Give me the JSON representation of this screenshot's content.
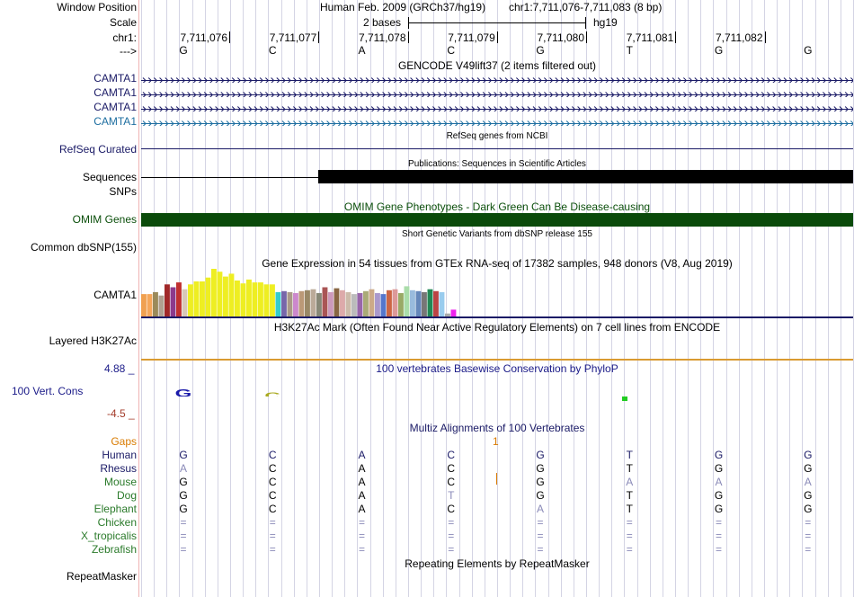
{
  "colors": {
    "navy": "#1a1a66",
    "teal": "#1d6ea0",
    "green_dark": "#0b4f0b",
    "omim_green": "#0a4a0a",
    "orange": "#d97b00",
    "red_label": "#a33b2a",
    "mammal_green": "#2a7a2a",
    "faint_base": "#8a8ab8"
  },
  "ruler": {
    "window_position_label": "Window Position",
    "scale_label": "Scale",
    "chr_label": "chr1:",
    "arrow_label": "--->",
    "assembly_text": "Human Feb. 2009 (GRCh37/hg19)",
    "position_text": "chr1:7,711,076-7,711,083 (8 bp)",
    "scale_text": "2 bases",
    "scale_db": "hg19",
    "coordinates": [
      "7,711,076",
      "7,711,077",
      "7,711,078",
      "7,711,079",
      "7,711,080",
      "7,711,081",
      "7,711,082"
    ],
    "bases": [
      "G",
      "C",
      "A",
      "C",
      "G",
      "T",
      "G",
      "G"
    ]
  },
  "gencode": {
    "title": "GENCODE V49lift37 (2 items filtered out)",
    "items": [
      "CAMTA1",
      "CAMTA1",
      "CAMTA1",
      "CAMTA1"
    ]
  },
  "refseq": {
    "label": "RefSeq Curated",
    "title": "RefSeq genes from NCBI"
  },
  "publications": {
    "label": "Sequences",
    "title": "Publications: Sequences in Scientific Articles"
  },
  "snps": {
    "label": "SNPs"
  },
  "omim": {
    "label": "OMIM Genes",
    "title": "OMIM Gene Phenotypes - Dark Green Can Be Disease-causing"
  },
  "dbsnp": {
    "label": "Common dbSNP(155)",
    "title": "Short Genetic Variants from dbSNP release 155"
  },
  "gtex": {
    "label": "CAMTA1",
    "title": "Gene Expression in 54 tissues from GTEx RNA-seq of 17382 samples, 948 donors (V8, Aug 2019)",
    "bars": [
      {
        "v": 0.48,
        "c": "#f0a050"
      },
      {
        "v": 0.48,
        "c": "#f5a65a"
      },
      {
        "v": 0.52,
        "c": "#9b8a5a"
      },
      {
        "v": 0.45,
        "c": "#b0a090"
      },
      {
        "v": 0.68,
        "c": "#a02828"
      },
      {
        "v": 0.62,
        "c": "#8c3a8c"
      },
      {
        "v": 0.72,
        "c": "#c03030"
      },
      {
        "v": 0.58,
        "c": "#d8c8b8"
      },
      {
        "v": 0.68,
        "c": "#eeee22"
      },
      {
        "v": 0.74,
        "c": "#eeee22"
      },
      {
        "v": 0.74,
        "c": "#eeee22"
      },
      {
        "v": 0.82,
        "c": "#eeee22"
      },
      {
        "v": 1.0,
        "c": "#eeee22"
      },
      {
        "v": 0.94,
        "c": "#eeee22"
      },
      {
        "v": 0.84,
        "c": "#eeee22"
      },
      {
        "v": 0.9,
        "c": "#eeee22"
      },
      {
        "v": 0.76,
        "c": "#eeee22"
      },
      {
        "v": 0.7,
        "c": "#eeee22"
      },
      {
        "v": 0.78,
        "c": "#eeee22"
      },
      {
        "v": 0.72,
        "c": "#eeee22"
      },
      {
        "v": 0.72,
        "c": "#eeee22"
      },
      {
        "v": 0.68,
        "c": "#eeee22"
      },
      {
        "v": 0.68,
        "c": "#eeee22"
      },
      {
        "v": 0.52,
        "c": "#33cccc"
      },
      {
        "v": 0.54,
        "c": "#7766aa"
      },
      {
        "v": 0.52,
        "c": "#aa9988"
      },
      {
        "v": 0.5,
        "c": "#cc88cc"
      },
      {
        "v": 0.54,
        "c": "#bb9977"
      },
      {
        "v": 0.56,
        "c": "#998866"
      },
      {
        "v": 0.58,
        "c": "#bbaa99"
      },
      {
        "v": 0.5,
        "c": "#888877"
      },
      {
        "v": 0.62,
        "c": "#aa5555"
      },
      {
        "v": 0.52,
        "c": "#cc99bb"
      },
      {
        "v": 0.6,
        "c": "#886644"
      },
      {
        "v": 0.56,
        "c": "#ddaaaa"
      },
      {
        "v": 0.52,
        "c": "#ccbbaa"
      },
      {
        "v": 0.48,
        "c": "#bbbbbb"
      },
      {
        "v": 0.5,
        "c": "#9966aa"
      },
      {
        "v": 0.54,
        "c": "#aaaa77"
      },
      {
        "v": 0.58,
        "c": "#ccaa88"
      },
      {
        "v": 0.5,
        "c": "#aa99cc"
      },
      {
        "v": 0.48,
        "c": "#5577cc"
      },
      {
        "v": 0.56,
        "c": "#cc6644"
      },
      {
        "v": 0.58,
        "c": "#dd9999"
      },
      {
        "v": 0.5,
        "c": "#99aa66"
      },
      {
        "v": 0.64,
        "c": "#aaddaa"
      },
      {
        "v": 0.56,
        "c": "#99bbdd"
      },
      {
        "v": 0.54,
        "c": "#6688bb"
      },
      {
        "v": 0.52,
        "c": "#777777"
      },
      {
        "v": 0.58,
        "c": "#228855"
      },
      {
        "v": 0.54,
        "c": "#bb4444"
      },
      {
        "v": 0.52,
        "c": "#99ccee"
      },
      {
        "v": 0.08,
        "c": "#aaaaaa"
      },
      {
        "v": 0.16,
        "c": "#ee22ee"
      }
    ]
  },
  "h3k27ac": {
    "label": "Layered H3K27Ac",
    "title": "H3K27Ac Mark (Often Found Near Active Regulatory Elements) on 7 cell lines from ENCODE"
  },
  "conservation": {
    "label": "100 Vert. Cons",
    "title": "100 vertebrates Basewise Conservation by PhyloP",
    "max_label": "4.88 _",
    "min_label": "-4.5 _",
    "scores": [
      0.32,
      0.26,
      0.02,
      -0.1,
      0.04,
      -0.06,
      0.03,
      0.0
    ],
    "logos": [
      {
        "ch": "G",
        "c": "#1a1aaa"
      },
      {
        "ch": "C",
        "c": "#aaaa22"
      },
      {
        "ch": "A",
        "c": "#aa3333"
      },
      {
        "ch": "C",
        "c": "#aaaa22"
      },
      {
        "ch": "G",
        "c": "#2244aa"
      },
      {
        "ch": "T",
        "c": "#22aa22"
      },
      {
        "ch": "G",
        "c": "#2244aa"
      },
      {
        "ch": "G",
        "c": "#2244aa"
      }
    ]
  },
  "multiz": {
    "title": "Multiz Alignments of 100 Vertebrates",
    "gaps_label": "Gaps",
    "gap_mark": "1",
    "species": [
      {
        "name": "Human",
        "color": "navy",
        "bases": [
          "G",
          "C",
          "A",
          "C",
          "G",
          "T",
          "G",
          "G"
        ],
        "faint": [
          false,
          false,
          false,
          false,
          false,
          false,
          false,
          false
        ]
      },
      {
        "name": "Rhesus",
        "color": "navy",
        "bases": [
          "A",
          "C",
          "A",
          "C",
          "G",
          "T",
          "G",
          "G"
        ],
        "faint": [
          true,
          false,
          false,
          false,
          false,
          false,
          false,
          false
        ]
      },
      {
        "name": "Mouse",
        "color": "mammal_green",
        "bases": [
          "G",
          "C",
          "A",
          "C",
          "G",
          "A",
          "A",
          "A"
        ],
        "faint": [
          false,
          false,
          false,
          false,
          false,
          true,
          true,
          true
        ]
      },
      {
        "name": "Dog",
        "color": "mammal_green",
        "bases": [
          "G",
          "C",
          "A",
          "T",
          "G",
          "T",
          "G",
          "G"
        ],
        "faint": [
          false,
          false,
          false,
          true,
          false,
          false,
          false,
          false
        ]
      },
      {
        "name": "Elephant",
        "color": "mammal_green",
        "bases": [
          "G",
          "C",
          "A",
          "C",
          "A",
          "T",
          "G",
          "G"
        ],
        "faint": [
          false,
          false,
          false,
          false,
          true,
          false,
          false,
          false
        ]
      },
      {
        "name": "Chicken",
        "color": "mammal_green",
        "bases": [
          "=",
          "=",
          "=",
          "=",
          "=",
          "=",
          "=",
          "="
        ],
        "faint": [
          true,
          true,
          true,
          true,
          true,
          true,
          true,
          true
        ]
      },
      {
        "name": "X_tropicalis",
        "color": "mammal_green",
        "bases": [
          "=",
          "=",
          "=",
          "=",
          "=",
          "=",
          "=",
          "="
        ],
        "faint": [
          true,
          true,
          true,
          true,
          true,
          true,
          true,
          true
        ]
      },
      {
        "name": "Zebrafish",
        "color": "mammal_green",
        "bases": [
          "=",
          "=",
          "=",
          "=",
          "=",
          "=",
          "=",
          "="
        ],
        "faint": [
          true,
          true,
          true,
          true,
          true,
          true,
          true,
          true
        ]
      }
    ]
  },
  "repeatmasker": {
    "label": "RepeatMasker",
    "title": "Repeating Elements by RepeatMasker"
  }
}
